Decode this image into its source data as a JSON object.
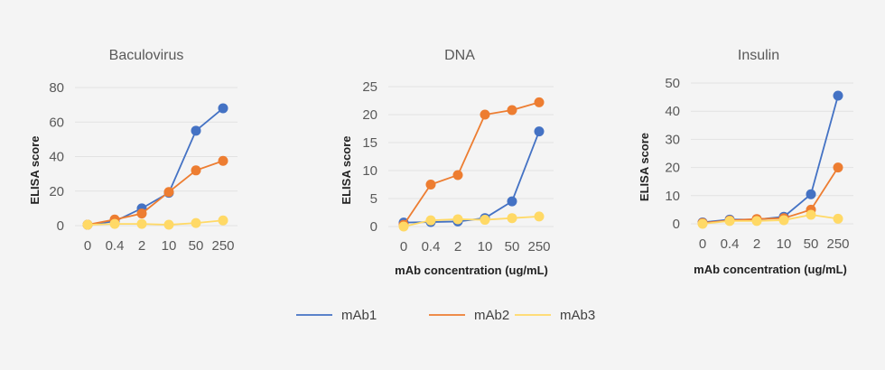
{
  "chart_data": [
    {
      "type": "line",
      "title": "Baculovirus",
      "xlabel": "",
      "ylabel": "ELISA score",
      "categories": [
        "0",
        "0.4",
        "2",
        "10",
        "50",
        "250"
      ],
      "ylim": [
        0,
        80
      ],
      "yticks": [
        0,
        20,
        40,
        60,
        80
      ],
      "grid": true,
      "series": [
        {
          "name": "mAb1",
          "values": [
            0.5,
            2.5,
            10,
            19,
            55,
            68
          ]
        },
        {
          "name": "mAb2",
          "values": [
            0.5,
            3.5,
            7,
            19.5,
            32,
            37.5
          ]
        },
        {
          "name": "mAb3",
          "values": [
            0.5,
            1,
            1,
            0.5,
            1.5,
            3
          ]
        }
      ]
    },
    {
      "type": "line",
      "title": "DNA",
      "xlabel": "mAb concentration (ug/mL)",
      "ylabel": "ELISA score",
      "categories": [
        "0",
        "0.4",
        "2",
        "10",
        "50",
        "250"
      ],
      "ylim": [
        0,
        25
      ],
      "yticks": [
        0,
        5,
        10,
        15,
        20,
        25
      ],
      "grid": true,
      "series": [
        {
          "name": "mAb1",
          "values": [
            0.7,
            0.8,
            0.9,
            1.5,
            4.5,
            17
          ]
        },
        {
          "name": "mAb2",
          "values": [
            0.3,
            7.5,
            9.2,
            20,
            20.8,
            22.2
          ]
        },
        {
          "name": "mAb3",
          "values": [
            0,
            1.1,
            1.3,
            1.2,
            1.5,
            1.8
          ]
        }
      ]
    },
    {
      "type": "line",
      "title": "Insulin",
      "xlabel": "mAb concentration (ug/mL)",
      "ylabel": "ELISA score",
      "categories": [
        "0",
        "0.4",
        "2",
        "10",
        "50",
        "250"
      ],
      "ylim": [
        0,
        50
      ],
      "yticks": [
        0,
        10,
        20,
        30,
        40,
        50
      ],
      "grid": true,
      "series": [
        {
          "name": "mAb1",
          "values": [
            0.5,
            1.5,
            1.5,
            2.5,
            10.5,
            45.5
          ]
        },
        {
          "name": "mAb2",
          "values": [
            0.3,
            1.2,
            1.7,
            2,
            5,
            20
          ]
        },
        {
          "name": "mAb3",
          "values": [
            0,
            1,
            1,
            1.3,
            3.2,
            1.8
          ]
        }
      ]
    }
  ],
  "legend": {
    "placement": "bottom",
    "items": [
      {
        "label": "mAb1",
        "color": "#4472C4"
      },
      {
        "label": "mAb2",
        "color": "#ED7D31"
      },
      {
        "label": "mAb3",
        "color": "#FFD966"
      }
    ]
  }
}
